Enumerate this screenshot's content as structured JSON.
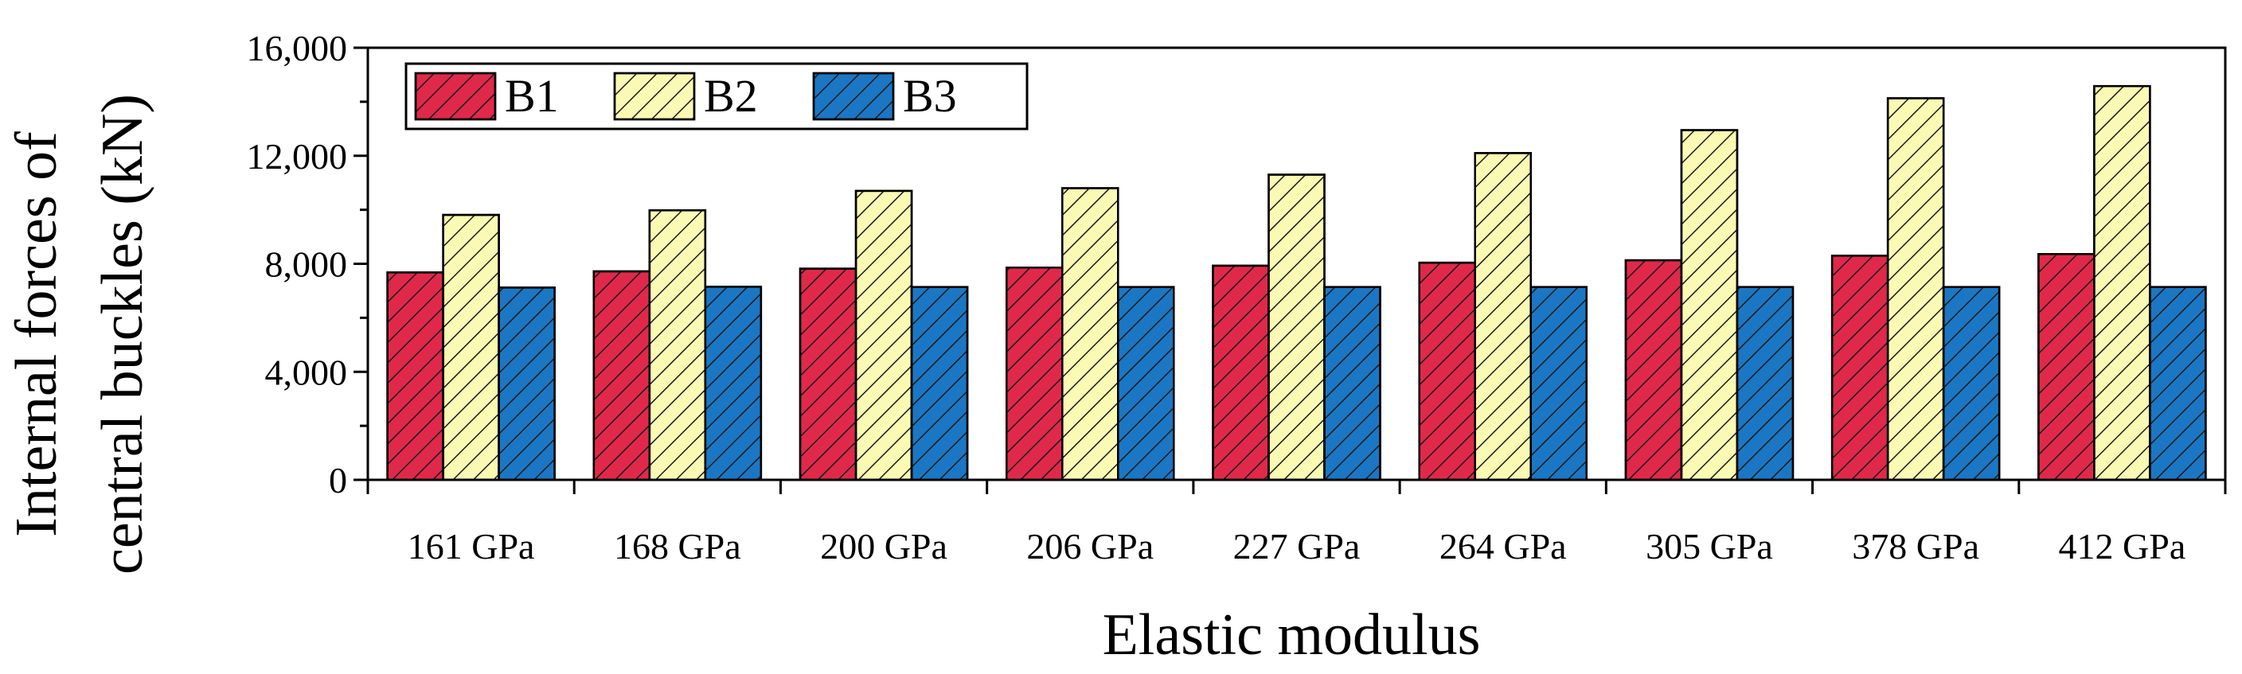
{
  "chart_data": {
    "type": "bar",
    "title": "",
    "xlabel": "Elastic modulus",
    "ylabel_lines": [
      "Internal forces of",
      "central buckles (kN)"
    ],
    "categories": [
      "161 GPa",
      "168 GPa",
      "200 GPa",
      "206 GPa",
      "227 GPa",
      "264 GPa",
      "305 GPa",
      "378 GPa",
      "412 GPa"
    ],
    "series": [
      {
        "name": "B1",
        "color": "#e0294a",
        "values": [
          7680,
          7720,
          7820,
          7860,
          7930,
          8040,
          8130,
          8300,
          8360
        ]
      },
      {
        "name": "B2",
        "color": "#fafab4",
        "values": [
          9810,
          9980,
          10700,
          10800,
          11300,
          12100,
          12950,
          14130,
          14580
        ]
      },
      {
        "name": "B3",
        "color": "#1b77c4",
        "values": [
          7120,
          7150,
          7140,
          7140,
          7140,
          7140,
          7140,
          7140,
          7140
        ]
      }
    ],
    "ylim": [
      0,
      16000
    ],
    "yticks": [
      0,
      4000,
      8000,
      12000,
      16000
    ],
    "ytick_labels": [
      "0",
      "4,000",
      "8,000",
      "12,000",
      "16,000"
    ],
    "grid": false,
    "legend_position": "top-left",
    "hatch": "diagonal"
  }
}
